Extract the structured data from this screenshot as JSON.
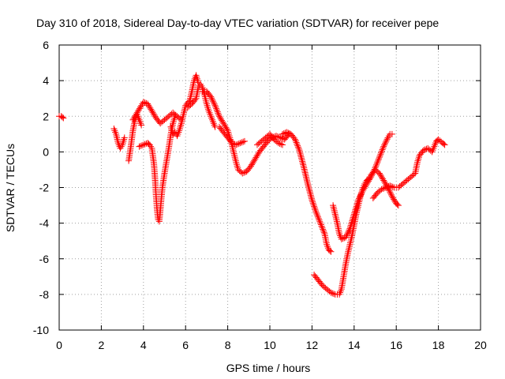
{
  "chart_data": {
    "type": "scatter",
    "title": "Day 310 of 2018, Sidereal Day-to-day VTEC variation (SDTVAR) for receiver pepe",
    "xlabel": "GPS time / hours",
    "ylabel": "SDTVAR / TECUs",
    "xlim": [
      0,
      20
    ],
    "ylim": [
      -10,
      6
    ],
    "xticks": [
      0,
      2,
      4,
      6,
      8,
      10,
      12,
      14,
      16,
      18,
      20
    ],
    "yticks": [
      -10,
      -8,
      -6,
      -4,
      -2,
      0,
      2,
      4,
      6
    ],
    "grid": true,
    "marker": "plus",
    "color": "#ff0000",
    "tracks": [
      [
        [
          0.0,
          2.0
        ],
        [
          0.1,
          2.0
        ],
        [
          0.2,
          1.9
        ]
      ],
      [
        [
          2.6,
          1.3
        ],
        [
          2.7,
          1.0
        ],
        [
          2.8,
          0.5
        ],
        [
          2.9,
          0.2
        ],
        [
          3.0,
          0.4
        ],
        [
          3.1,
          0.8
        ]
      ],
      [
        [
          3.3,
          -0.5
        ],
        [
          3.4,
          0.3
        ],
        [
          3.5,
          1.2
        ],
        [
          3.6,
          1.8
        ],
        [
          3.7,
          2.1
        ],
        [
          3.8,
          1.8
        ],
        [
          3.9,
          1.5
        ]
      ],
      [
        [
          3.5,
          1.8
        ],
        [
          3.7,
          2.2
        ],
        [
          3.9,
          2.6
        ],
        [
          4.0,
          2.8
        ],
        [
          4.2,
          2.7
        ],
        [
          4.4,
          2.3
        ],
        [
          4.6,
          1.9
        ],
        [
          4.8,
          1.6
        ],
        [
          5.0,
          1.8
        ],
        [
          5.2,
          2.0
        ],
        [
          5.4,
          2.2
        ],
        [
          5.6,
          2.0
        ],
        [
          5.8,
          1.8
        ]
      ],
      [
        [
          3.8,
          0.3
        ],
        [
          4.0,
          0.4
        ],
        [
          4.2,
          0.5
        ],
        [
          4.3,
          0.4
        ],
        [
          4.4,
          0.2
        ],
        [
          4.5,
          -0.7
        ],
        [
          4.55,
          -1.5
        ],
        [
          4.6,
          -2.5
        ],
        [
          4.65,
          -3.3
        ],
        [
          4.7,
          -3.8
        ],
        [
          4.75,
          -3.9
        ],
        [
          4.8,
          -3.3
        ],
        [
          4.85,
          -2.6
        ],
        [
          4.9,
          -2.0
        ],
        [
          5.0,
          -1.2
        ],
        [
          5.1,
          -0.5
        ],
        [
          5.2,
          0.2
        ],
        [
          5.3,
          1.0
        ],
        [
          5.4,
          1.6
        ],
        [
          5.5,
          2.0
        ]
      ],
      [
        [
          5.3,
          1.4
        ],
        [
          5.4,
          1.0
        ],
        [
          5.5,
          1.1
        ],
        [
          5.6,
          0.9
        ],
        [
          5.7,
          1.2
        ],
        [
          5.8,
          1.6
        ],
        [
          5.9,
          2.1
        ],
        [
          6.0,
          2.6
        ],
        [
          6.2,
          2.9
        ],
        [
          6.3,
          3.4
        ],
        [
          6.4,
          4.0
        ],
        [
          6.5,
          4.3
        ],
        [
          6.6,
          3.9
        ]
      ],
      [
        [
          6.1,
          2.5
        ],
        [
          6.3,
          2.7
        ],
        [
          6.5,
          3.0
        ],
        [
          6.6,
          3.6
        ],
        [
          6.7,
          3.8
        ],
        [
          6.8,
          3.6
        ],
        [
          6.9,
          3.2
        ],
        [
          7.0,
          2.7
        ],
        [
          7.1,
          2.3
        ],
        [
          7.2,
          2.0
        ],
        [
          7.3,
          1.7
        ],
        [
          7.4,
          1.4
        ]
      ],
      [
        [
          6.8,
          3.4
        ],
        [
          7.0,
          3.4
        ],
        [
          7.2,
          3.1
        ],
        [
          7.4,
          2.6
        ],
        [
          7.6,
          2.0
        ],
        [
          7.8,
          1.6
        ],
        [
          8.0,
          1.2
        ],
        [
          8.1,
          0.8
        ],
        [
          8.2,
          0.4
        ],
        [
          8.3,
          -0.1
        ],
        [
          8.4,
          -0.6
        ],
        [
          8.5,
          -1.0
        ],
        [
          8.7,
          -1.2
        ],
        [
          8.9,
          -1.1
        ],
        [
          9.1,
          -0.8
        ],
        [
          9.3,
          -0.4
        ],
        [
          9.5,
          0.0
        ],
        [
          9.7,
          0.3
        ],
        [
          9.9,
          0.6
        ],
        [
          10.1,
          0.8
        ],
        [
          10.3,
          0.9
        ],
        [
          10.5,
          0.8
        ],
        [
          10.7,
          0.7
        ],
        [
          10.9,
          1.0
        ]
      ],
      [
        [
          7.6,
          1.4
        ],
        [
          7.8,
          1.1
        ],
        [
          8.0,
          0.8
        ],
        [
          8.2,
          0.5
        ],
        [
          8.4,
          0.4
        ],
        [
          8.6,
          0.5
        ],
        [
          8.8,
          0.6
        ]
      ],
      [
        [
          9.4,
          0.4
        ],
        [
          9.6,
          0.6
        ],
        [
          9.8,
          0.8
        ],
        [
          10.0,
          1.0
        ],
        [
          10.2,
          0.7
        ],
        [
          10.4,
          0.5
        ],
        [
          10.6,
          0.4
        ]
      ],
      [
        [
          10.6,
          1.0
        ],
        [
          10.8,
          1.1
        ],
        [
          11.0,
          1.0
        ],
        [
          11.2,
          0.7
        ],
        [
          11.4,
          0.1
        ],
        [
          11.6,
          -0.8
        ],
        [
          11.8,
          -1.8
        ],
        [
          12.0,
          -2.7
        ],
        [
          12.2,
          -3.4
        ],
        [
          12.4,
          -4.0
        ],
        [
          12.6,
          -4.6
        ],
        [
          12.7,
          -5.2
        ],
        [
          12.8,
          -5.5
        ],
        [
          12.9,
          -5.6
        ]
      ],
      [
        [
          12.1,
          -6.9
        ],
        [
          12.3,
          -7.2
        ],
        [
          12.5,
          -7.5
        ],
        [
          12.7,
          -7.7
        ],
        [
          12.9,
          -7.9
        ],
        [
          13.1,
          -8.0
        ],
        [
          13.3,
          -8.0
        ],
        [
          13.4,
          -7.7
        ],
        [
          13.5,
          -7.0
        ],
        [
          13.6,
          -6.3
        ],
        [
          13.7,
          -5.7
        ],
        [
          13.8,
          -5.2
        ],
        [
          13.9,
          -4.7
        ],
        [
          14.0,
          -4.1
        ],
        [
          14.1,
          -3.5
        ],
        [
          14.2,
          -3.0
        ],
        [
          14.3,
          -2.5
        ],
        [
          14.4,
          -2.1
        ],
        [
          14.5,
          -1.8
        ],
        [
          14.6,
          -1.6
        ],
        [
          14.7,
          -1.5
        ],
        [
          14.8,
          -1.3
        ],
        [
          15.0,
          -1.0
        ],
        [
          15.2,
          -1.2
        ],
        [
          15.4,
          -1.6
        ],
        [
          15.6,
          -2.0
        ],
        [
          15.8,
          -2.5
        ],
        [
          16.0,
          -2.9
        ],
        [
          16.1,
          -3.0
        ]
      ],
      [
        [
          13.0,
          -3.0
        ],
        [
          13.1,
          -3.5
        ],
        [
          13.2,
          -4.0
        ],
        [
          13.3,
          -4.6
        ],
        [
          13.4,
          -4.9
        ],
        [
          13.6,
          -4.8
        ],
        [
          13.8,
          -4.3
        ],
        [
          14.0,
          -3.5
        ],
        [
          14.2,
          -2.7
        ],
        [
          14.4,
          -2.2
        ],
        [
          14.6,
          -1.8
        ],
        [
          14.8,
          -1.4
        ],
        [
          15.0,
          -0.9
        ],
        [
          15.2,
          -0.3
        ],
        [
          15.4,
          0.3
        ],
        [
          15.6,
          0.8
        ],
        [
          15.7,
          1.0
        ],
        [
          15.8,
          1.0
        ]
      ],
      [
        [
          14.9,
          -2.6
        ],
        [
          15.1,
          -2.3
        ],
        [
          15.3,
          -2.1
        ],
        [
          15.5,
          -2.0
        ],
        [
          15.7,
          -1.9
        ],
        [
          15.9,
          -2.0
        ],
        [
          16.1,
          -2.0
        ],
        [
          16.3,
          -1.8
        ],
        [
          16.5,
          -1.6
        ],
        [
          16.7,
          -1.4
        ],
        [
          16.9,
          -1.2
        ],
        [
          17.0,
          -0.6
        ],
        [
          17.1,
          -0.2
        ],
        [
          17.3,
          0.1
        ],
        [
          17.5,
          0.2
        ],
        [
          17.7,
          0.0
        ],
        [
          17.8,
          0.3
        ],
        [
          17.9,
          0.6
        ],
        [
          18.0,
          0.7
        ],
        [
          18.2,
          0.5
        ],
        [
          18.3,
          0.4
        ]
      ]
    ]
  }
}
